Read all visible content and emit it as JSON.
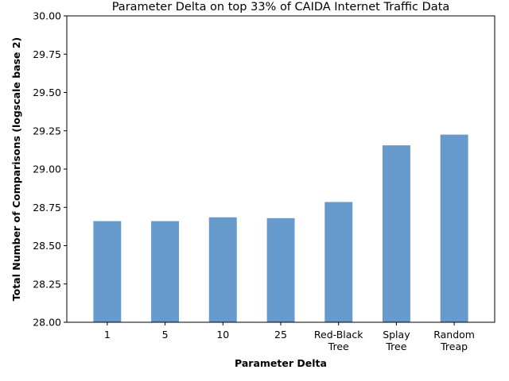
{
  "chart_data": {
    "type": "bar",
    "title": "Parameter Delta on top 33% of CAIDA Internet Traffic Data",
    "xlabel": "Parameter Delta",
    "ylabel": "Total Number of Comparisons (logscale base 2)",
    "categories": [
      [
        "1"
      ],
      [
        "5"
      ],
      [
        "10"
      ],
      [
        "25"
      ],
      [
        "Red-Black",
        "Tree"
      ],
      [
        "Splay",
        "Tree"
      ],
      [
        "Random",
        "Treap"
      ]
    ],
    "values": [
      28.66,
      28.66,
      28.685,
      28.68,
      28.785,
      29.155,
      29.225
    ],
    "ylim": [
      28.0,
      30.0
    ],
    "yticks": [
      "28.00",
      "28.25",
      "28.50",
      "28.75",
      "29.00",
      "29.25",
      "29.50",
      "29.75",
      "30.00"
    ],
    "bar_color": "#6699cc",
    "grid": false,
    "legend": "none"
  }
}
